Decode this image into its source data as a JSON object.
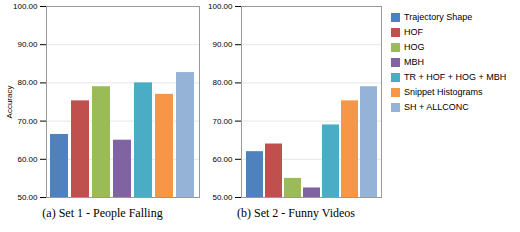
{
  "chart_data": [
    {
      "type": "bar",
      "title": "(a) Set 1 - People Falling",
      "ylabel": "Accuracy",
      "categories": [
        "Trajectory Shape",
        "HOF",
        "HOG",
        "MBH",
        "TR + HOF + HOG + MBH",
        "Snippet Histograms",
        "SH + ALLCONC"
      ],
      "values": [
        66.5,
        75.3,
        79.0,
        65.0,
        80.0,
        77.0,
        82.7
      ],
      "colors": [
        "#4f81bd",
        "#c0504d",
        "#9bbb59",
        "#8064a2",
        "#4bacc6",
        "#f79646",
        "#95b3d7"
      ],
      "ylim": [
        50,
        100
      ],
      "yticks": [
        {
          "value": 50,
          "label": "50.00"
        },
        {
          "value": 60,
          "label": "60.00"
        },
        {
          "value": 70,
          "label": "70.00"
        },
        {
          "value": 80,
          "label": "80.00"
        },
        {
          "value": 90,
          "label": "90.00"
        },
        {
          "value": 100,
          "label": "100.00"
        }
      ],
      "grid": true,
      "tick_labels": "y"
    },
    {
      "type": "bar",
      "title": "(b) Set 2 - Funny Videos",
      "categories": [
        "Trajectory Shape",
        "HOF",
        "HOG",
        "MBH",
        "TR + HOF + HOG + MBH",
        "Snippet Histograms",
        "SH + ALLCONC"
      ],
      "values": [
        62.0,
        64.0,
        55.0,
        52.5,
        69.0,
        75.3,
        79.0
      ],
      "colors": [
        "#4f81bd",
        "#c0504d",
        "#9bbb59",
        "#8064a2",
        "#4bacc6",
        "#f79646",
        "#95b3d7"
      ],
      "ylim": [
        50,
        100
      ],
      "yticks": [
        {
          "value": 50,
          "label": "50.00"
        },
        {
          "value": 60,
          "label": "60.00"
        },
        {
          "value": 70,
          "label": "70.00"
        },
        {
          "value": 80,
          "label": "80.00"
        },
        {
          "value": 90,
          "label": "90.00"
        },
        {
          "value": 100,
          "label": "100.00"
        }
      ],
      "grid": true,
      "tick_labels": "y",
      "legend": "right"
    }
  ]
}
